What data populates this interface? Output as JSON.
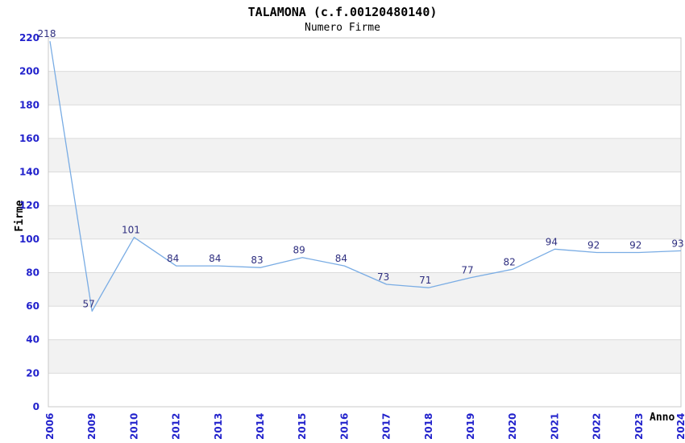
{
  "chart_data": {
    "type": "line",
    "title": "TALAMONA (c.f.00120480140)",
    "subtitle": "Numero Firme",
    "xlabel": "Anno",
    "ylabel": "Firme",
    "categories": [
      "2006",
      "2009",
      "2010",
      "2012",
      "2013",
      "2014",
      "2015",
      "2016",
      "2017",
      "2018",
      "2019",
      "2020",
      "2021",
      "2022",
      "2023",
      "2024"
    ],
    "values": [
      218,
      57,
      101,
      84,
      84,
      83,
      89,
      84,
      73,
      71,
      77,
      82,
      94,
      92,
      92,
      93
    ],
    "ylim": [
      0,
      220
    ],
    "ytick_step": 20,
    "grid": "horizontal-gridlines-with-alternating-bands",
    "legend_position": "none",
    "x_tick_rotation": -90,
    "colors": {
      "line": "#79ACE4",
      "tick_label": "#2222CC",
      "data_label": "#2F2F80",
      "band_alt": "#F2F2F2",
      "band_main": "#FFFFFF",
      "gridline": "#DBDBDB",
      "plot_border": "#C8C8C8",
      "title": "#000000",
      "background": "#FFFFFF"
    }
  }
}
